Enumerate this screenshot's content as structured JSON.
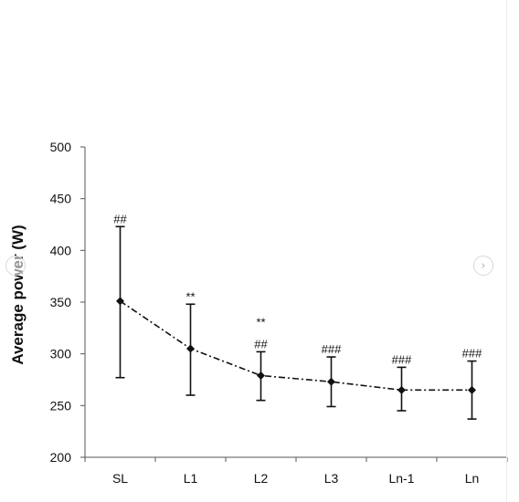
{
  "chart_data": {
    "type": "line",
    "title": "",
    "xlabel": "",
    "ylabel": "Average power (W)",
    "ylim": [
      200,
      500
    ],
    "yticks": [
      200,
      250,
      300,
      350,
      400,
      450,
      500
    ],
    "categories": [
      "SL",
      "L1",
      "L2",
      "L3",
      "Ln-1",
      "Ln"
    ],
    "values": [
      351,
      305,
      279,
      273,
      265,
      265
    ],
    "error_upper": [
      423,
      348,
      302,
      297,
      287,
      293
    ],
    "error_lower": [
      277,
      260,
      255,
      249,
      245,
      237
    ],
    "annotations": [
      {
        "category": "SL",
        "lines": [
          "##"
        ]
      },
      {
        "category": "L1",
        "lines": [
          "**"
        ]
      },
      {
        "category": "L2",
        "lines": [
          "**",
          "##"
        ]
      },
      {
        "category": "L3",
        "lines": [
          "###"
        ]
      },
      {
        "category": "Ln-1",
        "lines": [
          "###"
        ]
      },
      {
        "category": "Ln",
        "lines": [
          "###"
        ]
      }
    ],
    "line_style": "dash-dot",
    "grid": false,
    "legend": "none"
  },
  "navigation": {
    "prev_icon": "chevron-left-icon",
    "next_icon": "chevron-right-icon",
    "prev_glyph": "‹",
    "next_glyph": "›"
  },
  "colors": {
    "series": "#111111",
    "axis": "#555555",
    "text": "#111111"
  }
}
